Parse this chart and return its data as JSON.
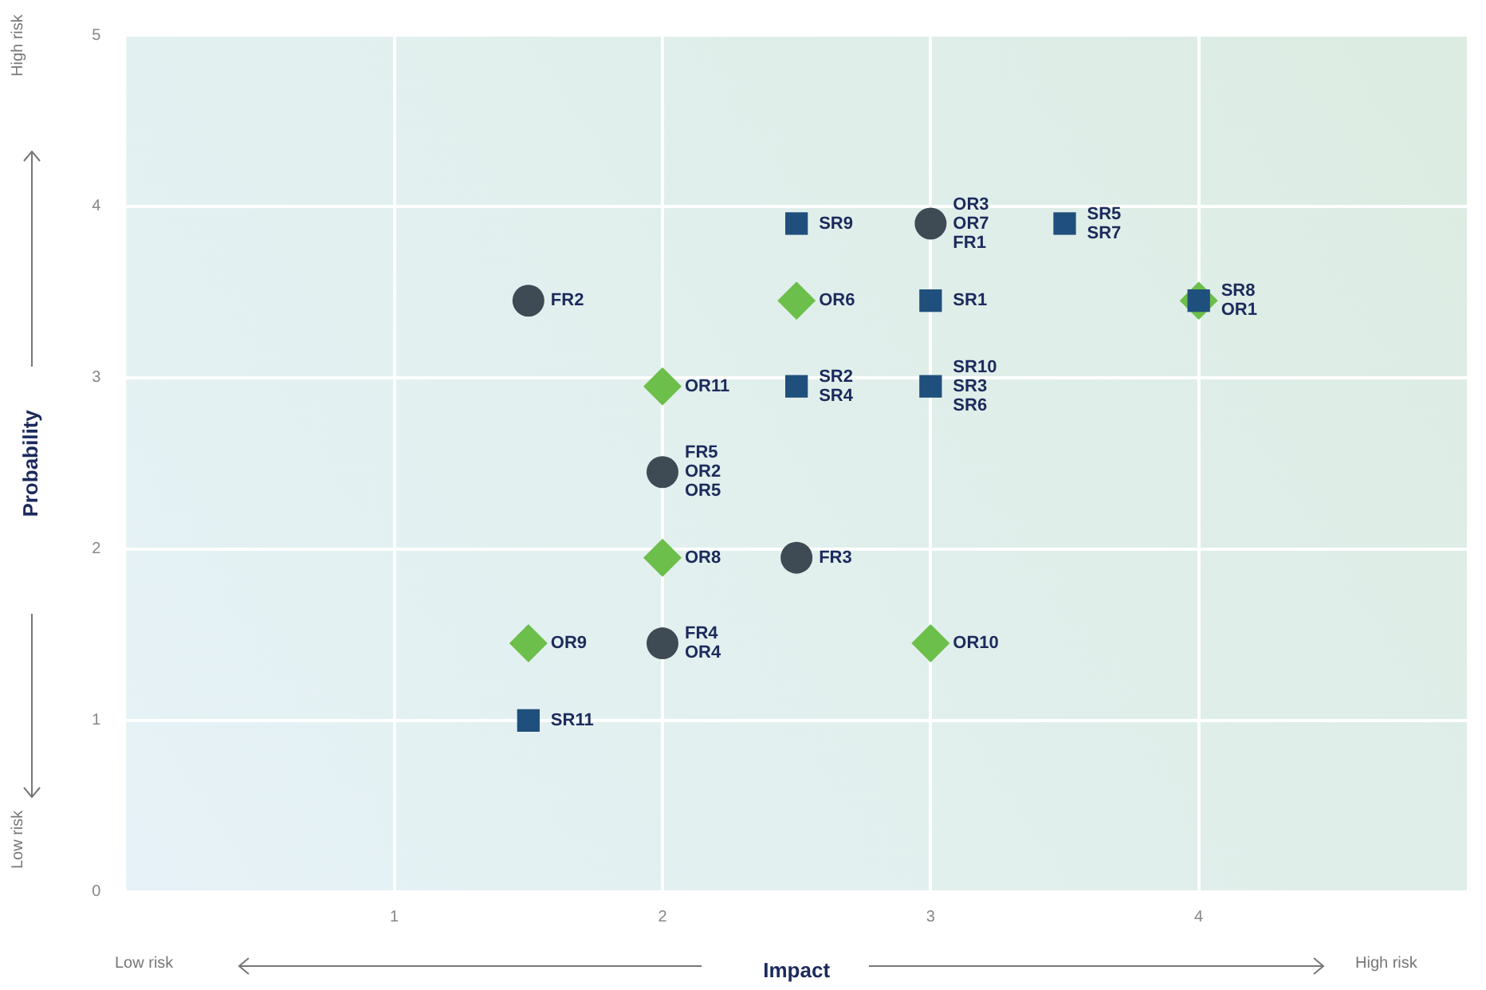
{
  "chart_data": {
    "type": "scatter",
    "xlabel": "Impact",
    "ylabel": "Probability",
    "xlim": [
      0,
      5
    ],
    "xticks": [
      1,
      2,
      3,
      4
    ],
    "ylim": [
      0,
      5
    ],
    "yticks": [
      0,
      1,
      2,
      3,
      4,
      5
    ],
    "grid": true,
    "legend": false,
    "series": [
      {
        "marker": "diamond",
        "color": "#6cbf4a",
        "x": [
          2.5,
          2,
          2,
          1.5,
          3,
          4
        ],
        "values": [
          3.45,
          2.95,
          1.95,
          1.45,
          1.45,
          3.45
        ]
      },
      {
        "marker": "circle",
        "color": "#3e4a54",
        "x": [
          3,
          1.5,
          2,
          2.5,
          2
        ],
        "values": [
          3.9,
          3.45,
          2.45,
          1.95,
          1.45
        ]
      },
      {
        "marker": "square",
        "color": "#1f4f7c",
        "x": [
          2.5,
          3.5,
          3,
          4,
          2.5,
          3,
          1.5
        ],
        "values": [
          3.9,
          3.9,
          3.45,
          3.45,
          2.95,
          2.95,
          1
        ]
      }
    ],
    "annotations": [
      "Low risk",
      "High risk",
      "Low risk",
      "High risk",
      {
        "text": "SR9",
        "x": 2.5,
        "y": 3.9
      },
      {
        "text": "OR3\nOR7\nFR1",
        "x": 3,
        "y": 3.9
      },
      {
        "text": "SR5\nSR7",
        "x": 3.5,
        "y": 3.9
      },
      {
        "text": "FR2",
        "x": 1.5,
        "y": 3.45
      },
      {
        "text": "OR6",
        "x": 2.5,
        "y": 3.45
      },
      {
        "text": "SR1",
        "x": 3,
        "y": 3.45
      },
      {
        "text": "SR8\nOR1",
        "x": 4,
        "y": 3.45
      },
      {
        "text": "OR11",
        "x": 2,
        "y": 2.95
      },
      {
        "text": "SR2\nSR4",
        "x": 2.5,
        "y": 2.95
      },
      {
        "text": "SR10\nSR3\nSR6",
        "x": 3,
        "y": 2.95
      },
      {
        "text": "FR5\nOR2\nOR5",
        "x": 2,
        "y": 2.45
      },
      {
        "text": "OR8",
        "x": 2,
        "y": 1.95
      },
      {
        "text": "FR3",
        "x": 2.5,
        "y": 1.95
      },
      {
        "text": "OR9",
        "x": 1.5,
        "y": 1.45
      },
      {
        "text": "FR4\nOR4",
        "x": 2,
        "y": 1.45
      },
      {
        "text": "OR10",
        "x": 3,
        "y": 1.45
      },
      {
        "text": "SR11",
        "x": 1.5,
        "y": 1
      }
    ]
  }
}
